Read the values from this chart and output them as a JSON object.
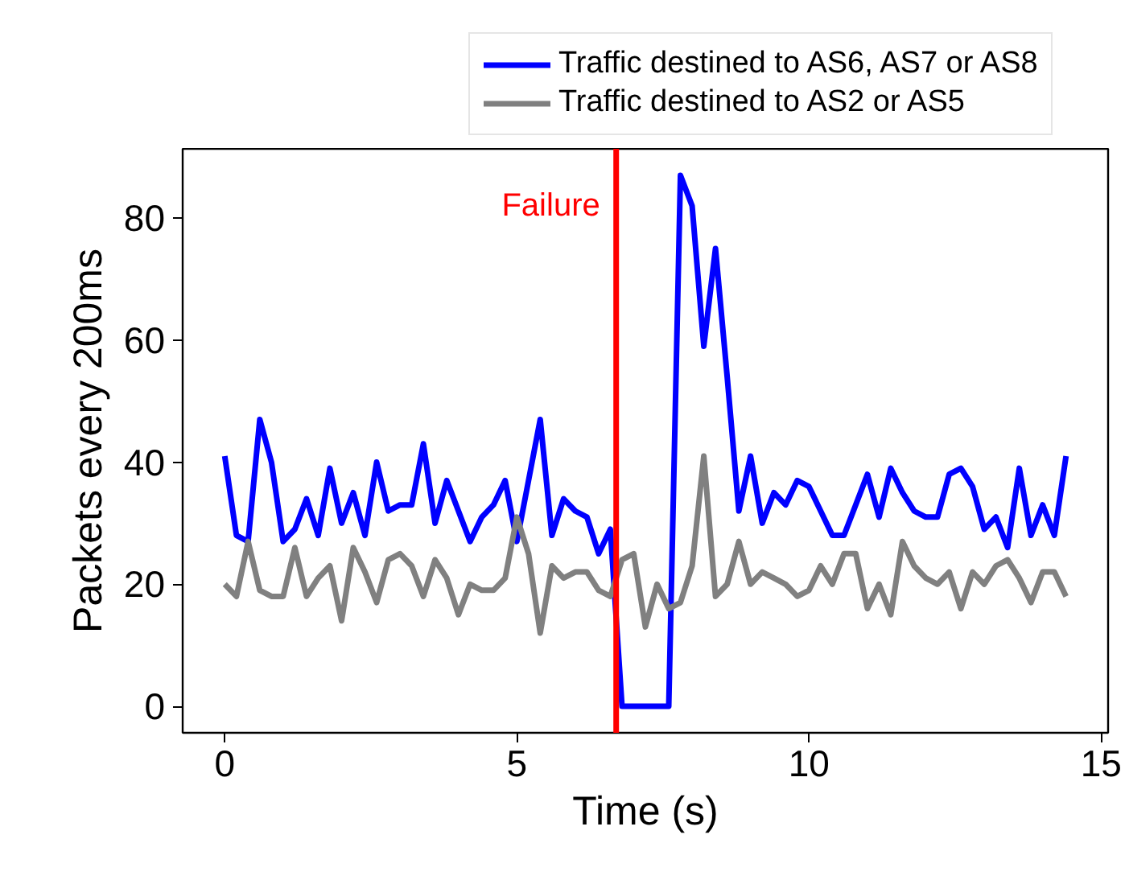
{
  "chart_data": {
    "type": "line",
    "xlabel": "Time (s)",
    "ylabel": "Packets every 200ms",
    "x": [
      0,
      0.2,
      0.4,
      0.6,
      0.8,
      1,
      1.2,
      1.4,
      1.6,
      1.8,
      2,
      2.2,
      2.4,
      2.6,
      2.8,
      3,
      3.2,
      3.4,
      3.6,
      3.8,
      4,
      4.2,
      4.4,
      4.6,
      4.8,
      5,
      5.2,
      5.4,
      5.6,
      5.8,
      6,
      6.2,
      6.4,
      6.6,
      6.8,
      7,
      7.2,
      7.4,
      7.6,
      7.8,
      8,
      8.2,
      8.4,
      8.6,
      8.8,
      9,
      9.2,
      9.4,
      9.6,
      9.8,
      10,
      10.2,
      10.4,
      10.6,
      10.8,
      11,
      11.2,
      11.4,
      11.6,
      11.8,
      12,
      12.2,
      12.4,
      12.6,
      12.8,
      13,
      13.2,
      13.4,
      13.6,
      13.8,
      14,
      14.2,
      14.4
    ],
    "series": [
      {
        "name": "Traffic destined to AS6, AS7 or AS8",
        "color": "#0000ff",
        "values": [
          41,
          28,
          27,
          47,
          40,
          27,
          29,
          34,
          28,
          39,
          30,
          35,
          28,
          40,
          32,
          33,
          33,
          43,
          30,
          37,
          32,
          27,
          31,
          33,
          37,
          27,
          37,
          47,
          28,
          34,
          32,
          31,
          25,
          29,
          0,
          0,
          0,
          0,
          0,
          87,
          82,
          59,
          75,
          54,
          32,
          41,
          30,
          35,
          33,
          37,
          36,
          32,
          28,
          28,
          33,
          38,
          31,
          39,
          35,
          32,
          31,
          31,
          38,
          39,
          36,
          29,
          31,
          26,
          39,
          28,
          33,
          28,
          41
        ]
      },
      {
        "name": "Traffic destined to AS2 or AS5",
        "color": "#808080",
        "values": [
          20,
          18,
          27,
          19,
          18,
          18,
          26,
          18,
          21,
          23,
          14,
          26,
          22,
          17,
          24,
          25,
          23,
          18,
          24,
          21,
          15,
          20,
          19,
          19,
          21,
          31,
          25,
          12,
          23,
          21,
          22,
          22,
          19,
          18,
          24,
          25,
          13,
          20,
          16,
          17,
          23,
          41,
          18,
          20,
          27,
          20,
          22,
          21,
          20,
          18,
          19,
          23,
          20,
          25,
          25,
          16,
          20,
          15,
          27,
          23,
          21,
          20,
          22,
          16,
          22,
          20,
          23,
          24,
          21,
          17,
          22,
          22,
          18
        ]
      }
    ],
    "xlim": [
      -0.72,
      15.12
    ],
    "ylim": [
      -4.35,
      91.35
    ],
    "xticks": [
      0,
      5,
      10,
      15
    ],
    "yticks": [
      0,
      20,
      40,
      60,
      80
    ],
    "ref_lines": [
      {
        "axis": "x",
        "value": 6.7,
        "label": "Failure",
        "color": "#ff0000"
      }
    ],
    "grid": false,
    "legend": "top",
    "marker": "none",
    "line_style": "solid"
  }
}
